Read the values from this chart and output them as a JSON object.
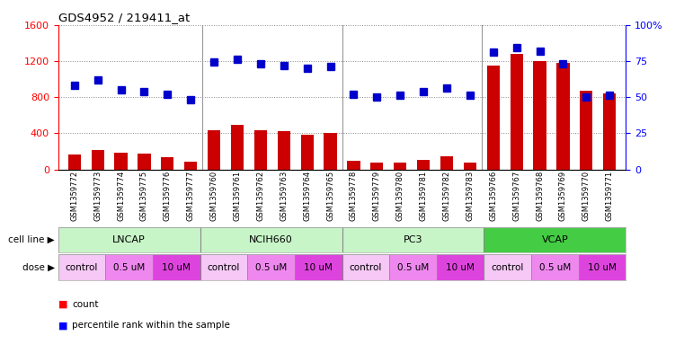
{
  "title": "GDS4952 / 219411_at",
  "gsm_labels": [
    "GSM1359772",
    "GSM1359773",
    "GSM1359774",
    "GSM1359775",
    "GSM1359776",
    "GSM1359777",
    "GSM1359760",
    "GSM1359761",
    "GSM1359762",
    "GSM1359763",
    "GSM1359764",
    "GSM1359765",
    "GSM1359778",
    "GSM1359779",
    "GSM1359780",
    "GSM1359781",
    "GSM1359782",
    "GSM1359783",
    "GSM1359766",
    "GSM1359767",
    "GSM1359768",
    "GSM1359769",
    "GSM1359770",
    "GSM1359771"
  ],
  "counts": [
    170,
    215,
    185,
    175,
    135,
    85,
    430,
    490,
    430,
    420,
    380,
    400,
    100,
    75,
    80,
    110,
    150,
    75,
    1150,
    1280,
    1200,
    1180,
    870,
    840
  ],
  "percentiles": [
    58,
    62,
    55,
    54,
    52,
    48,
    74,
    76,
    73,
    72,
    70,
    71,
    52,
    50,
    51,
    54,
    56,
    51,
    81,
    84,
    82,
    73,
    50,
    51
  ],
  "cell_lines": [
    {
      "name": "LNCAP",
      "start": 0,
      "end": 6,
      "color": "#c8f5c8"
    },
    {
      "name": "NCIH660",
      "start": 6,
      "end": 12,
      "color": "#c8f5c8"
    },
    {
      "name": "PC3",
      "start": 12,
      "end": 18,
      "color": "#c8f5c8"
    },
    {
      "name": "VCAP",
      "start": 18,
      "end": 24,
      "color": "#44cc44"
    }
  ],
  "doses": [
    {
      "label": "control",
      "start": 0,
      "end": 2,
      "color": "#f5c8f5"
    },
    {
      "label": "0.5 uM",
      "start": 2,
      "end": 4,
      "color": "#ee88ee"
    },
    {
      "label": "10 uM",
      "start": 4,
      "end": 6,
      "color": "#dd44dd"
    },
    {
      "label": "control",
      "start": 6,
      "end": 8,
      "color": "#f5c8f5"
    },
    {
      "label": "0.5 uM",
      "start": 8,
      "end": 10,
      "color": "#ee88ee"
    },
    {
      "label": "10 uM",
      "start": 10,
      "end": 12,
      "color": "#dd44dd"
    },
    {
      "label": "control",
      "start": 12,
      "end": 14,
      "color": "#f5c8f5"
    },
    {
      "label": "0.5 uM",
      "start": 14,
      "end": 16,
      "color": "#ee88ee"
    },
    {
      "label": "10 uM",
      "start": 16,
      "end": 18,
      "color": "#dd44dd"
    },
    {
      "label": "control",
      "start": 18,
      "end": 20,
      "color": "#f5c8f5"
    },
    {
      "label": "0.5 uM",
      "start": 20,
      "end": 22,
      "color": "#ee88ee"
    },
    {
      "label": "10 uM",
      "start": 22,
      "end": 24,
      "color": "#dd44dd"
    }
  ],
  "ylim_left": [
    0,
    1600
  ],
  "ylim_right": [
    0,
    100
  ],
  "yticks_left": [
    0,
    400,
    800,
    1200,
    1600
  ],
  "yticks_right": [
    0,
    25,
    50,
    75,
    100
  ],
  "bar_color": "#cc0000",
  "dot_color": "#0000cc",
  "background_color": "#ffffff",
  "grid_color": "#888888",
  "label_row_color": "#cccccc",
  "cell_line_sep_color": "#44aa44"
}
